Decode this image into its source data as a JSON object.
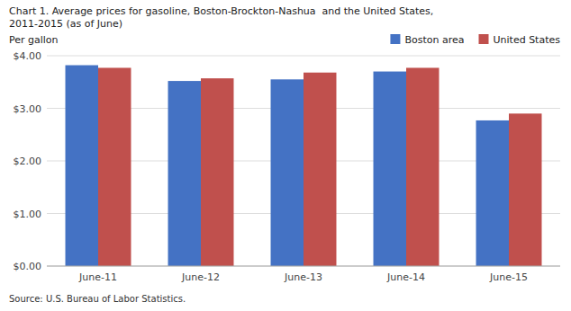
{
  "chart_data": {
    "type": "bar",
    "title": "Chart 1. Average prices for gasoline, Boston-Brockton-Nashua  and the United States,",
    "subtitle": "2011-2015 (as of June)",
    "ylabel": "Per gallon",
    "annotations": [
      "Source: U.S. Bureau of Labor Statistics."
    ],
    "categories": [
      "June-11",
      "June-12",
      "June-13",
      "June-14",
      "June-15"
    ],
    "series": [
      {
        "name": "Boston area",
        "color": "#4472C4",
        "values": [
          3.82,
          3.52,
          3.55,
          3.7,
          2.77
        ]
      },
      {
        "name": "United States",
        "color": "#C0504D",
        "values": [
          3.77,
          3.57,
          3.68,
          3.77,
          2.9
        ]
      }
    ],
    "ylim": [
      0,
      4.0
    ],
    "yticks": [
      {
        "value": 0.0,
        "label": "$0.00"
      },
      {
        "value": 1.0,
        "label": "$1.00"
      },
      {
        "value": 2.0,
        "label": "$2.00"
      },
      {
        "value": 3.0,
        "label": "$3.00"
      },
      {
        "value": 4.0,
        "label": "$4.00"
      }
    ],
    "grid": true,
    "legend": "top-right"
  }
}
